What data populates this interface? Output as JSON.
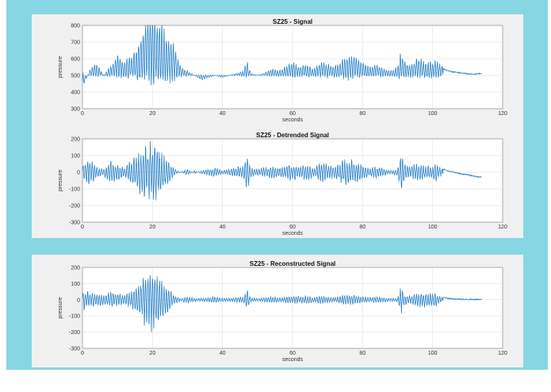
{
  "chart_data": [
    {
      "type": "line",
      "title": "SZ25 - Signal",
      "xlabel": "seconds",
      "ylabel": "pressure",
      "xlim": [
        0,
        120
      ],
      "ylim": [
        300,
        800
      ],
      "xticks": [
        0,
        20,
        40,
        60,
        80,
        100,
        120
      ],
      "yticks": [
        300,
        400,
        500,
        600,
        700,
        800
      ],
      "grid": true,
      "color": "#2b83c9",
      "series": [
        {
          "x": [
            0,
            2,
            4,
            6,
            8,
            10,
            12,
            14,
            16,
            17,
            18,
            19,
            20,
            21,
            22,
            23,
            24,
            25,
            26,
            27,
            28,
            30,
            32,
            34,
            36,
            38,
            40,
            42,
            44,
            46,
            47,
            48,
            50,
            52,
            54,
            56,
            58,
            60,
            62,
            64,
            66,
            68,
            70,
            72,
            74,
            76,
            78,
            80,
            82,
            84,
            86,
            88,
            90,
            91,
            92,
            94,
            96,
            98,
            100,
            101,
            102,
            104,
            106,
            108,
            110,
            112,
            114
          ],
          "values": [
            440,
            520,
            560,
            500,
            540,
            590,
            560,
            600,
            640,
            700,
            740,
            780,
            790,
            770,
            760,
            720,
            690,
            660,
            650,
            580,
            540,
            520,
            500,
            480,
            490,
            500,
            490,
            500,
            510,
            520,
            570,
            510,
            500,
            510,
            530,
            520,
            540,
            560,
            540,
            550,
            530,
            560,
            550,
            540,
            570,
            590,
            580,
            560,
            540,
            550,
            530,
            520,
            540,
            610,
            560,
            550,
            580,
            560,
            560,
            570,
            550,
            530,
            520,
            515,
            510,
            508,
            512
          ]
        }
      ]
    },
    {
      "type": "line",
      "title": "SZ25 - Detrended Signal",
      "xlabel": "seconds",
      "ylabel": "pressure",
      "xlim": [
        0,
        120
      ],
      "ylim": [
        -300,
        200
      ],
      "xticks": [
        0,
        20,
        40,
        60,
        80,
        100,
        120
      ],
      "yticks": [
        -300,
        -200,
        -100,
        0,
        100,
        200
      ],
      "grid": true,
      "color": "#2b83c9",
      "series": [
        {
          "x": [
            0,
            2,
            4,
            6,
            8,
            10,
            12,
            14,
            16,
            17,
            18,
            19,
            20,
            21,
            22,
            23,
            24,
            25,
            26,
            27,
            28,
            30,
            32,
            34,
            36,
            38,
            40,
            42,
            44,
            46,
            47,
            48,
            50,
            52,
            54,
            56,
            58,
            60,
            62,
            64,
            66,
            68,
            70,
            72,
            74,
            76,
            78,
            80,
            82,
            84,
            86,
            88,
            90,
            91,
            92,
            94,
            96,
            98,
            100,
            101,
            102,
            104,
            106,
            108,
            110,
            112,
            114
          ],
          "values": [
            60,
            90,
            40,
            20,
            70,
            50,
            30,
            80,
            110,
            140,
            160,
            170,
            170,
            160,
            150,
            120,
            90,
            60,
            30,
            10,
            0,
            20,
            -10,
            10,
            20,
            30,
            10,
            20,
            30,
            40,
            130,
            30,
            20,
            30,
            40,
            30,
            40,
            60,
            40,
            50,
            30,
            60,
            50,
            40,
            70,
            80,
            70,
            50,
            30,
            40,
            20,
            10,
            20,
            150,
            50,
            40,
            60,
            40,
            40,
            60,
            30,
            10,
            0,
            -10,
            -15,
            -25,
            -30
          ]
        }
      ]
    },
    {
      "type": "line",
      "title": "SZ25 - Reconstructed Signal",
      "xlabel": "seconds",
      "ylabel": "pressure",
      "xlim": [
        0,
        120
      ],
      "ylim": [
        -300,
        200
      ],
      "xticks": [
        0,
        20,
        40,
        60,
        80,
        100,
        120
      ],
      "yticks": [
        -300,
        -200,
        -100,
        0,
        100,
        200
      ],
      "grid": true,
      "color": "#2b83c9",
      "series": [
        {
          "x": [
            0,
            2,
            4,
            6,
            8,
            10,
            12,
            14,
            16,
            17,
            18,
            19,
            20,
            21,
            22,
            23,
            24,
            25,
            26,
            27,
            28,
            30,
            32,
            34,
            36,
            38,
            40,
            42,
            44,
            46,
            47,
            48,
            50,
            52,
            54,
            56,
            58,
            60,
            62,
            64,
            66,
            68,
            70,
            72,
            74,
            76,
            78,
            80,
            82,
            84,
            86,
            88,
            90,
            91,
            92,
            94,
            96,
            98,
            100,
            101,
            102,
            104,
            106,
            108,
            110,
            112,
            114
          ],
          "values": [
            60,
            50,
            40,
            30,
            50,
            40,
            30,
            60,
            100,
            130,
            160,
            180,
            180,
            170,
            150,
            120,
            90,
            60,
            30,
            20,
            10,
            20,
            10,
            10,
            15,
            20,
            10,
            10,
            15,
            20,
            70,
            15,
            10,
            15,
            20,
            15,
            20,
            30,
            20,
            25,
            15,
            30,
            20,
            15,
            30,
            35,
            30,
            20,
            15,
            20,
            15,
            10,
            15,
            100,
            30,
            25,
            50,
            45,
            40,
            45,
            20,
            10,
            5,
            3,
            2,
            2,
            2
          ]
        }
      ]
    }
  ]
}
